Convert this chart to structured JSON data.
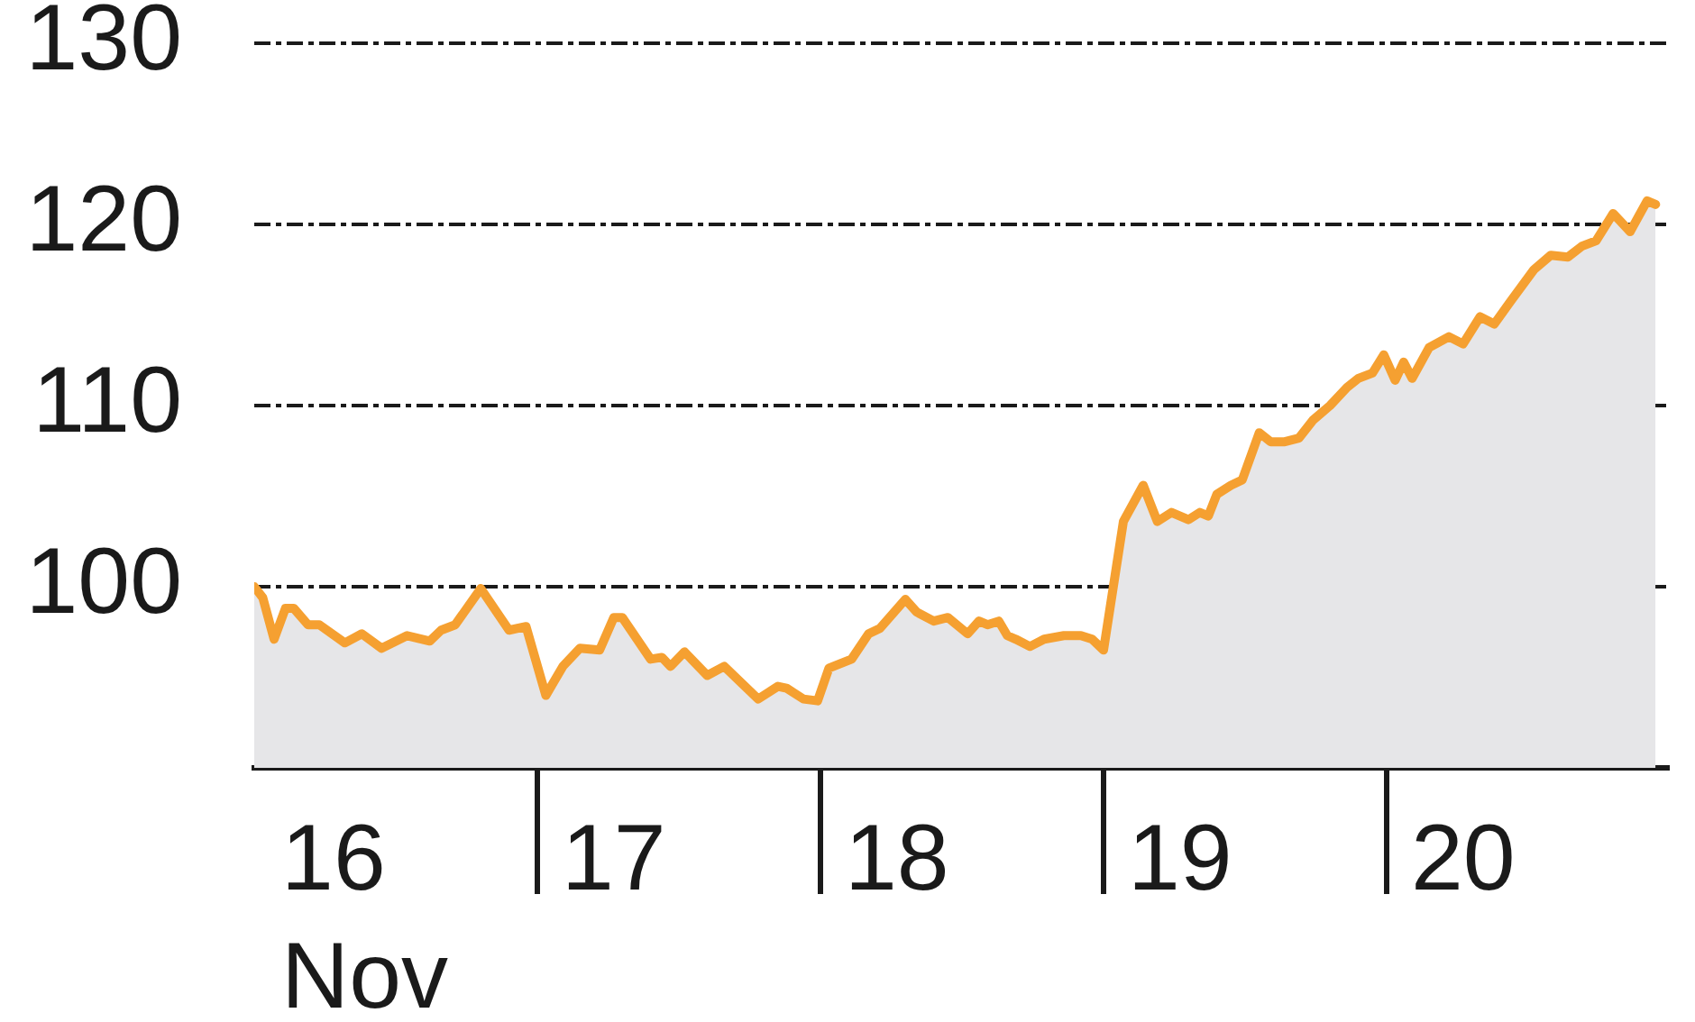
{
  "chart_data": {
    "type": "area",
    "xlabel": "Nov",
    "color": "#f5a031",
    "x": [
      16.0,
      16.03,
      16.07,
      16.11,
      16.14,
      16.19,
      16.23,
      16.32,
      16.38,
      16.45,
      16.54,
      16.62,
      16.66,
      16.71,
      16.8,
      16.9,
      16.96,
      17.03,
      17.09,
      17.15,
      17.22,
      17.27,
      17.3,
      17.4,
      17.44,
      17.47,
      17.52,
      17.6,
      17.66,
      17.78,
      17.85,
      17.88,
      17.94,
      17.99,
      18.03,
      18.11,
      18.17,
      18.21,
      18.3,
      18.34,
      18.4,
      18.45,
      18.52,
      18.56,
      18.59,
      18.63,
      18.66,
      18.69,
      18.74,
      18.79,
      18.86,
      18.92,
      18.96,
      19.0,
      19.07,
      19.14,
      19.19,
      19.24,
      19.3,
      19.34,
      19.37,
      19.4,
      19.45,
      19.49,
      19.55,
      19.59,
      19.64,
      19.69,
      19.74,
      19.8,
      19.86,
      19.9,
      19.95,
      19.99,
      20.03,
      20.06,
      20.09,
      20.15,
      20.22,
      20.27,
      20.33,
      20.38,
      20.44,
      20.52,
      20.58,
      20.64,
      20.69,
      20.74,
      20.8,
      20.86,
      20.92,
      20.95
    ],
    "values": [
      100.0,
      99.4,
      97.1,
      98.8,
      98.8,
      97.9,
      97.9,
      96.9,
      97.4,
      96.6,
      97.3,
      97.0,
      97.6,
      97.9,
      99.9,
      97.6,
      97.8,
      94.0,
      95.6,
      96.6,
      96.5,
      98.3,
      98.3,
      96.0,
      96.1,
      95.6,
      96.4,
      95.1,
      95.6,
      93.8,
      94.5,
      94.4,
      93.8,
      93.7,
      95.5,
      96.0,
      97.4,
      97.7,
      99.3,
      98.6,
      98.1,
      98.3,
      97.4,
      98.1,
      97.9,
      98.1,
      97.3,
      97.1,
      96.7,
      97.1,
      97.3,
      97.3,
      97.1,
      96.5,
      103.6,
      105.6,
      103.6,
      104.1,
      103.7,
      104.1,
      103.9,
      105.1,
      105.6,
      105.9,
      108.5,
      108.0,
      108.0,
      108.2,
      109.2,
      110.0,
      111.0,
      111.5,
      111.8,
      112.8,
      111.4,
      112.4,
      111.5,
      113.2,
      113.8,
      113.4,
      114.9,
      114.5,
      115.8,
      117.5,
      118.3,
      118.2,
      118.8,
      119.1,
      120.6,
      119.6,
      121.3,
      121.1
    ],
    "xlim": [
      16,
      21
    ],
    "xticks": [
      {
        "value": 16.28,
        "label": "16"
      },
      {
        "value": 17,
        "label": null
      },
      {
        "value": 17.27,
        "label": "17"
      },
      {
        "value": 18,
        "label": null
      },
      {
        "value": 18.27,
        "label": "18"
      },
      {
        "value": 19,
        "label": null
      },
      {
        "value": 19.27,
        "label": "19"
      },
      {
        "value": 20,
        "label": null
      },
      {
        "value": 20.27,
        "label": "20"
      }
    ],
    "ylim": [
      90,
      130
    ],
    "yticks": [
      100,
      110,
      120,
      130
    ],
    "grid": "y"
  }
}
